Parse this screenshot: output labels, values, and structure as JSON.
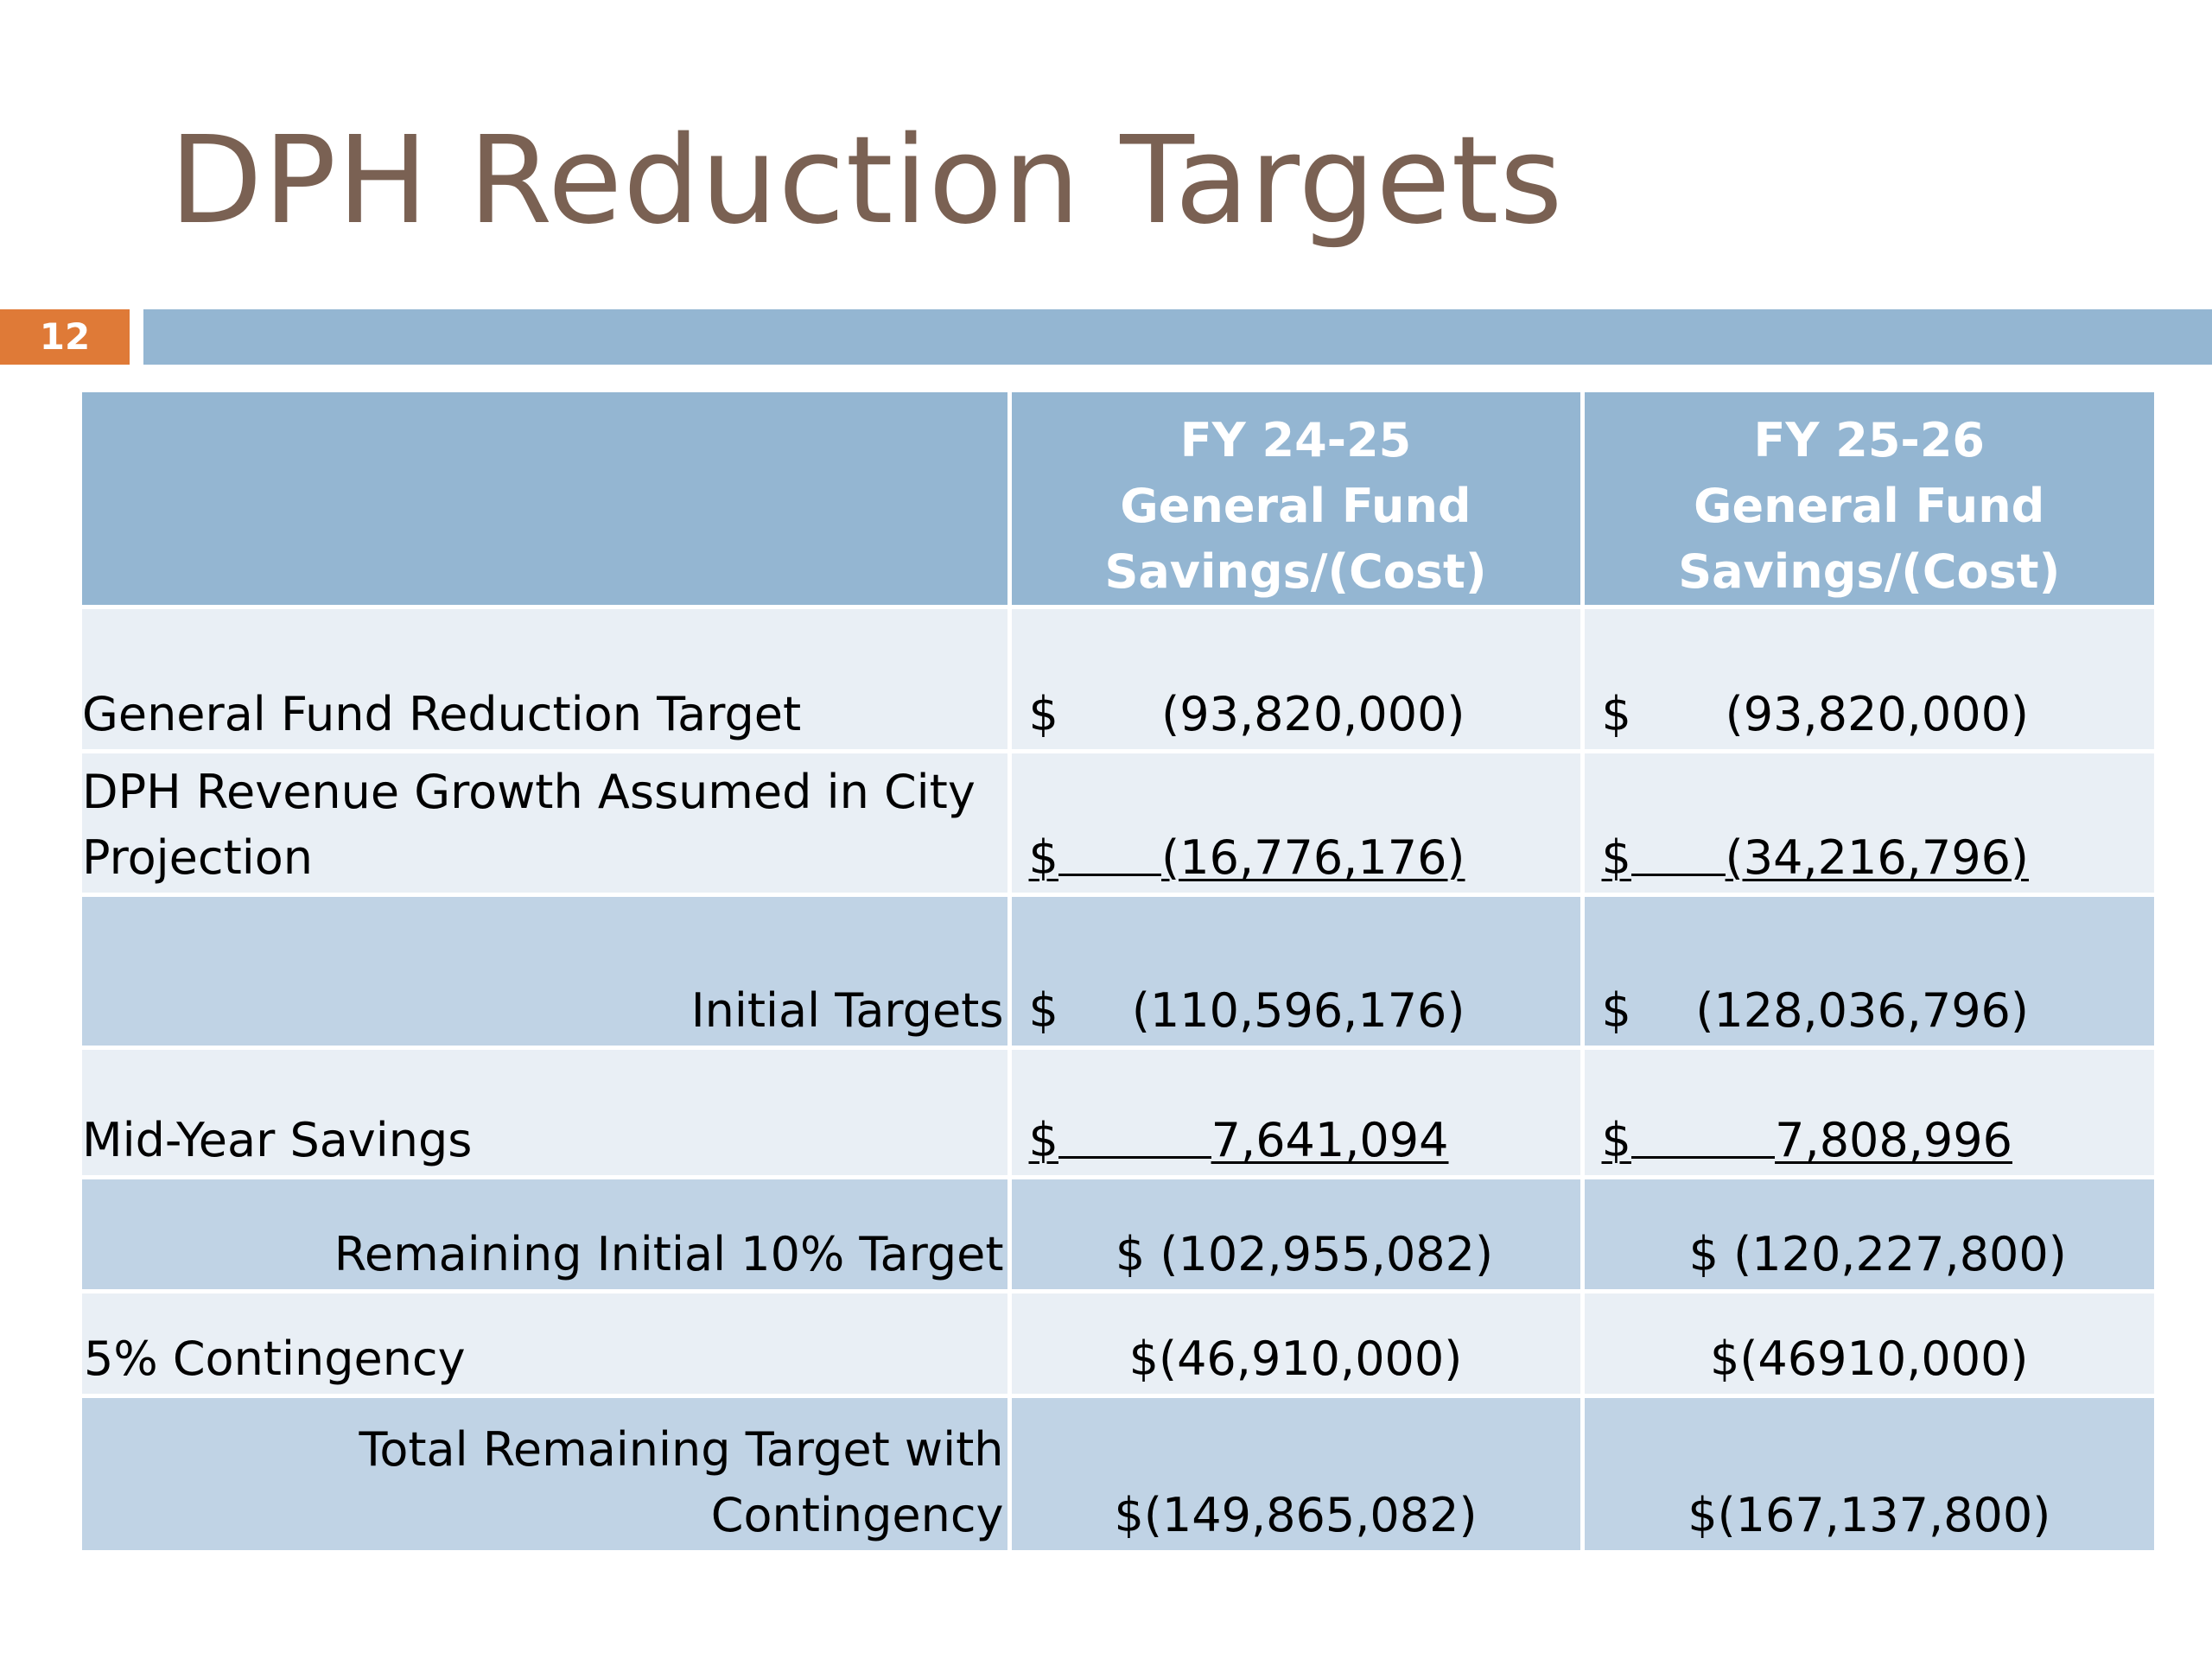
{
  "slide": {
    "title": "DPH Reduction Targets",
    "page_number": "12",
    "colors": {
      "title": "#7a6153",
      "accent_orange": "#df7a37",
      "header_blue": "#94b6d2",
      "row_dark": "#c0d3e5",
      "row_light": "#e9eff5"
    }
  },
  "table": {
    "headers": {
      "label": "",
      "fy1": [
        "FY 24-25",
        "General Fund",
        "Savings/(Cost)"
      ],
      "fy2": [
        "FY 25-26",
        "General Fund",
        "Savings/(Cost)"
      ]
    },
    "rows": [
      {
        "label": "General Fund Reduction Target",
        "fy1_symbol": "$",
        "fy1_value": "(93,820,000)",
        "fy2_symbol": "$",
        "fy2_value": "(93,820,000)"
      },
      {
        "label": "DPH Revenue Growth Assumed in City Projection",
        "label_line1": "DPH Revenue Growth Assumed in City",
        "label_line2": "Projection",
        "fy1_symbol": "$",
        "fy1_value": "(16,776,176)",
        "fy2_symbol": "$",
        "fy2_value": "(34,216,796)"
      },
      {
        "label": "Initial Targets",
        "fy1_symbol": "$",
        "fy1_value": "(110,596,176)",
        "fy2_symbol": "$",
        "fy2_value": "(128,036,796)"
      },
      {
        "label": "Mid-Year Savings",
        "fy1_symbol": "$",
        "fy1_value": "7,641,094",
        "fy2_symbol": "$",
        "fy2_value": "7,808,996"
      },
      {
        "label": "Remaining Initial 10% Target",
        "fy1_value": "$ (102,955,082)",
        "fy2_value": "$ (120,227,800)"
      },
      {
        "label": "5% Contingency",
        "fy1_value": "$(46,910,000)",
        "fy2_value": "$(46910,000)"
      },
      {
        "label": "Total Remaining Target with Contingency",
        "fy1_value": "$(149,865,082)",
        "fy2_value": "$(167,137,800)"
      }
    ]
  }
}
